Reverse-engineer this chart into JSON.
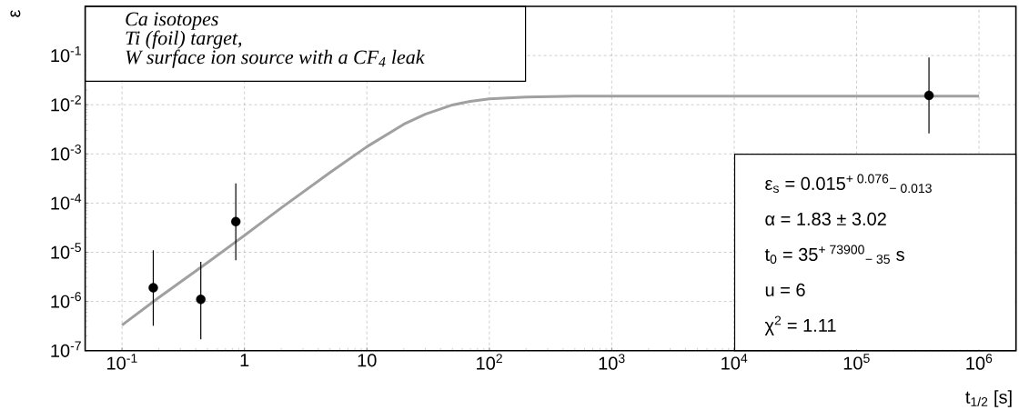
{
  "chart_data": {
    "type": "scatter",
    "xlabel": "t$_{1/2}$ [s]",
    "ylabel": "ε",
    "log": "xy",
    "grid": true,
    "xlim": [
      0.05,
      2000000
    ],
    "ylim": [
      1e-07,
      1
    ],
    "xticks": [
      {
        "value": 0.1,
        "label": "10$^{-1}$"
      },
      1,
      10,
      {
        "value": 100,
        "label": "10$^{2}$"
      },
      {
        "value": 1000,
        "label": "10$^{3}$"
      },
      {
        "value": 10000,
        "label": "10$^{4}$"
      },
      {
        "value": 100000,
        "label": "10$^{5}$"
      },
      {
        "value": 1000000,
        "label": "10$^{6}$"
      }
    ],
    "yticks": [
      {
        "value": 1e-07,
        "label": "10$^{-7}$"
      },
      {
        "value": 1e-06,
        "label": "10$^{-6}$"
      },
      {
        "value": 1e-05,
        "label": "10$^{-5}$"
      },
      {
        "value": 0.0001,
        "label": "10$^{-4}$"
      },
      {
        "value": 0.001,
        "label": "10$^{-3}$"
      },
      {
        "value": 0.01,
        "label": "10$^{-2}$"
      },
      {
        "value": 0.1,
        "label": "10$^{-1}$"
      }
    ],
    "series": [
      {
        "color": "#000000",
        "marker": "circle",
        "x": [
          0.18,
          0.44,
          0.85,
          390000
        ],
        "values": [
          1.9e-06,
          1.1e-06,
          4.2e-05,
          0.0155
        ],
        "errors": [
          [
            3.2e-07,
            1.1e-05
          ],
          [
            1.7e-07,
            6.4e-06
          ],
          [
            6.9e-06,
            0.00025
          ],
          [
            0.0026,
            0.091
          ]
        ]
      },
      {
        "type": "line",
        "color": "#a0a0a0",
        "marker": "none",
        "x": [
          0.1,
          0.2,
          0.5,
          1,
          2,
          5,
          10,
          20,
          30,
          50,
          70,
          100,
          200,
          500,
          1000,
          1000000
        ],
        "values": [
          3.3e-07,
          1.2e-06,
          6.2e-06,
          2.2e-05,
          8e-05,
          0.00042,
          0.0014,
          0.004,
          0.0064,
          0.0099,
          0.0117,
          0.0131,
          0.0144,
          0.0149,
          0.015,
          0.015
        ]
      }
    ],
    "annotations": [
      "Ca isotopes",
      "Ti (foil) target,",
      "W surface ion source with a CF$_{4}$ leak",
      "ε$_{s}$ = 0.015$^{+ 0.076}$$_{− 0.013}$",
      "α = 1.83 ± 3.02",
      "t$_{0}$ = 35$^{+ 73900}$$_{− 35}$ s",
      "u = 6",
      "χ$^{2}$ = 1.11"
    ]
  }
}
